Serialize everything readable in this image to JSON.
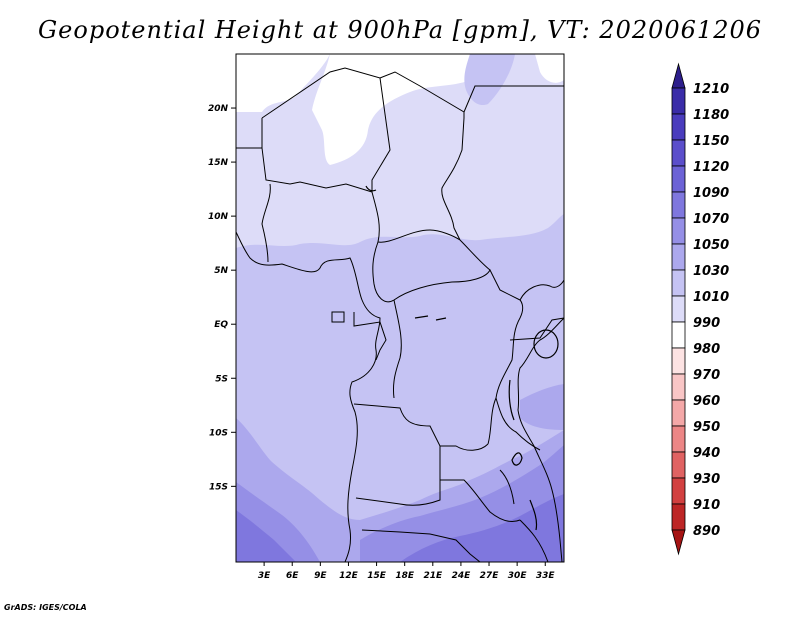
{
  "title": "Geopotential Height at 900hPa [gpm], VT: 2020061206",
  "credit": "GrADS: IGES/COLA",
  "map": {
    "lon_range": [
      0,
      35
    ],
    "lat_range": [
      -22,
      25
    ],
    "x_ticks": [
      "3E",
      "6E",
      "9E",
      "12E",
      "15E",
      "18E",
      "21E",
      "24E",
      "27E",
      "30E",
      "33E"
    ],
    "y_ticks": [
      "20N",
      "15N",
      "10N",
      "5N",
      "EQ",
      "5S",
      "10S",
      "15S"
    ],
    "field": "geopotential height 900hPa",
    "shading": "height increases from ~1010 gpm in the north to ~1090 gpm in the south"
  },
  "colorbar": {
    "labels": [
      "1210",
      "1180",
      "1150",
      "1120",
      "1090",
      "1070",
      "1050",
      "1030",
      "1010",
      "990",
      "980",
      "970",
      "960",
      "950",
      "940",
      "930",
      "910",
      "890"
    ],
    "colors": [
      "#2d1e8c",
      "#3a2ca8",
      "#4a3cbd",
      "#5b4ecb",
      "#6c62d6",
      "#7f77de",
      "#958fe6",
      "#aca8ed",
      "#c5c3f3",
      "#dddcf8",
      "#ffffff",
      "#fde3e3",
      "#f9c6c6",
      "#f4a8a8",
      "#ec8686",
      "#e06262",
      "#d24040",
      "#bd2626",
      "#a51313"
    ]
  }
}
